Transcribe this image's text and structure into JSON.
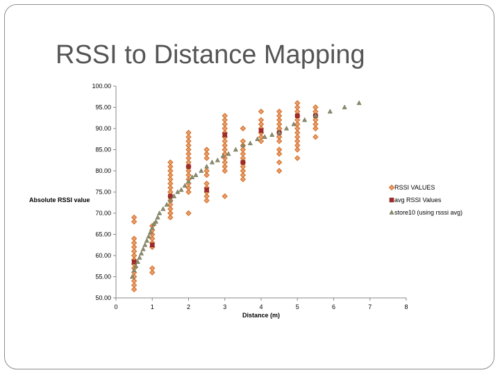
{
  "slide": {
    "title": "RSSI to Distance Mapping"
  },
  "chart_data": {
    "type": "scatter",
    "title": "",
    "xlabel": "Distance (m)",
    "ylabel": "Absolute RSSI value",
    "xlim": [
      0,
      8
    ],
    "ylim": [
      50,
      100
    ],
    "x_ticks": [
      0,
      1,
      2,
      3,
      4,
      5,
      6,
      7,
      8
    ],
    "y_ticks": [
      50,
      55,
      60,
      65,
      70,
      75,
      80,
      85,
      90,
      95,
      100
    ],
    "y_tick_labels": [
      "50.00",
      "55.00",
      "60.00",
      "65.00",
      "70.00",
      "75.00",
      "80.00",
      "85.00",
      "90.00",
      "95.00",
      "100.00"
    ],
    "grid": false,
    "legend_position": "right",
    "series": [
      {
        "name": "RSSI VALUES",
        "marker": "diamond",
        "color": "#d2691e",
        "x": [
          0.5,
          0.5,
          0.5,
          0.5,
          0.5,
          0.5,
          0.5,
          0.5,
          0.5,
          0.5,
          0.5,
          0.5,
          0.5,
          0.5,
          0.5,
          0.5,
          0.5,
          0.5,
          1,
          1,
          1,
          1,
          1,
          1,
          1,
          1,
          1.5,
          1.5,
          1.5,
          1.5,
          1.5,
          1.5,
          1.5,
          1.5,
          1.5,
          1.5,
          1.5,
          1.5,
          1.5,
          1.5,
          1.5,
          1.5,
          1.5,
          1.5,
          2,
          2,
          2,
          2,
          2,
          2,
          2,
          2,
          2,
          2,
          2,
          2,
          2,
          2,
          2,
          2,
          2,
          2.5,
          2.5,
          2.5,
          2.5,
          2.5,
          2.5,
          2.5,
          2.5,
          2.5,
          2.5,
          3,
          3,
          3,
          3,
          3,
          3,
          3,
          3,
          3,
          3,
          3,
          3,
          3,
          3,
          3,
          3,
          3.5,
          3.5,
          3.5,
          3.5,
          3.5,
          3.5,
          3.5,
          3.5,
          3.5,
          3.5,
          3.5,
          3.5,
          4,
          4,
          4,
          4,
          4,
          4,
          4,
          4,
          4.5,
          4.5,
          4.5,
          4.5,
          4.5,
          4.5,
          4.5,
          4.5,
          4.5,
          4.5,
          4.5,
          4.5,
          4.5,
          4.5,
          4.5,
          5,
          5,
          5,
          5,
          5,
          5,
          5,
          5,
          5,
          5,
          5,
          5,
          5,
          5,
          5.5,
          5.5,
          5.5,
          5.5,
          5.5,
          5.5,
          5.5
        ],
        "y": [
          52,
          53,
          54,
          55,
          56,
          57,
          58,
          59,
          60,
          61,
          62,
          63,
          64,
          68,
          69,
          57,
          58,
          59,
          56,
          57,
          62,
          63,
          64,
          65,
          66,
          67,
          69,
          70,
          71,
          72,
          73,
          74,
          75,
          76,
          77,
          78,
          79,
          80,
          81,
          82,
          70,
          73,
          74,
          75,
          70,
          75,
          76,
          77,
          78,
          79,
          80,
          81,
          82,
          83,
          84,
          85,
          86,
          87,
          88,
          89,
          81,
          73,
          74,
          75,
          76,
          77,
          79,
          80,
          83,
          84,
          85,
          74,
          80,
          81,
          82,
          83,
          84,
          85,
          86,
          87,
          88,
          89,
          90,
          91,
          92,
          93,
          88,
          78,
          79,
          80,
          81,
          82,
          83,
          84,
          85,
          86,
          87,
          90,
          82,
          87,
          88,
          89,
          90,
          91,
          92,
          94,
          89,
          80,
          82,
          84,
          85,
          87,
          88,
          89,
          90,
          91,
          92,
          93,
          94,
          88,
          89,
          90,
          83,
          85,
          86,
          87,
          88,
          89,
          90,
          91,
          92,
          93,
          94,
          95,
          96,
          93,
          88,
          90,
          91,
          92,
          93,
          94,
          95
        ]
      },
      {
        "name": "avg RSSI Values",
        "marker": "square",
        "color": "#a52a2a",
        "x": [
          0.5,
          1,
          1.5,
          2,
          2.5,
          3,
          3.5,
          4,
          4.5,
          5,
          5.5
        ],
        "y": [
          58.5,
          62.5,
          74,
          81,
          75.5,
          88.5,
          82,
          89.5,
          89,
          93,
          93
        ]
      },
      {
        "name": "store10 (using rsssi avg)",
        "marker": "triangle",
        "color": "#8b8b6b",
        "x": [
          0.45,
          0.5,
          0.55,
          0.6,
          0.65,
          0.7,
          0.75,
          0.8,
          0.85,
          0.9,
          0.95,
          1.0,
          1.05,
          1.1,
          1.15,
          1.2,
          1.3,
          1.4,
          1.5,
          1.6,
          1.7,
          1.8,
          1.9,
          2.0,
          2.1,
          2.2,
          2.35,
          2.5,
          2.65,
          2.8,
          2.95,
          3.1,
          3.3,
          3.5,
          3.7,
          3.9,
          4.1,
          4.3,
          4.5,
          4.7,
          4.9,
          5.2,
          5.5,
          5.9,
          6.3,
          6.7
        ],
        "y": [
          55,
          56.5,
          57.5,
          58.5,
          59.5,
          60.5,
          61.5,
          62.5,
          63.5,
          64.5,
          65.5,
          66.5,
          67.5,
          68,
          69,
          70,
          71,
          72,
          73,
          74,
          75,
          75.5,
          76.5,
          77.5,
          78.5,
          79,
          80,
          81,
          82,
          82.5,
          83.5,
          84,
          85,
          86,
          86.5,
          87.5,
          88,
          88.5,
          89,
          90,
          91,
          92,
          93,
          94,
          95,
          96
        ]
      }
    ]
  }
}
